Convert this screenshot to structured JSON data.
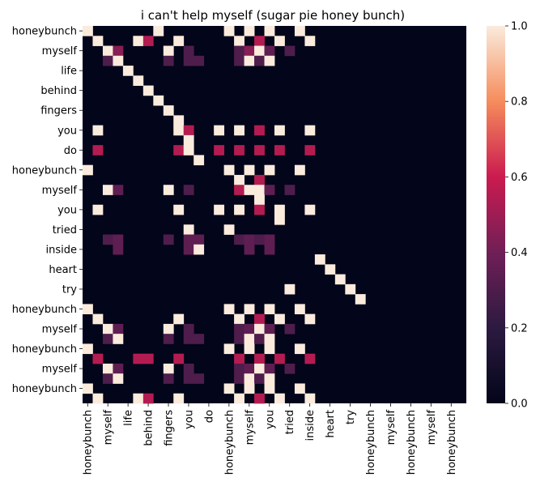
{
  "chart_data": {
    "type": "heatmap",
    "title": "i can't help myself (sugar pie honey bunch)",
    "tick_labels": [
      "honeybunch",
      "myself",
      "life",
      "behind",
      "fingers",
      "you",
      "do",
      "honeybunch",
      "myself",
      "you",
      "tried",
      "inside",
      "heart",
      "try",
      "honeybunch",
      "myself",
      "honeybunch",
      "myself",
      "honeybunch"
    ],
    "n": 38,
    "colorbar": {
      "min": 0.0,
      "max": 1.0,
      "ticks": [
        "0.0",
        "0.2",
        "0.4",
        "0.6",
        "0.8",
        "1.0"
      ]
    },
    "colormap": "rocket",
    "cells": [
      [
        0,
        0,
        1.0
      ],
      [
        0,
        7,
        1.0
      ],
      [
        0,
        14,
        1.0
      ],
      [
        0,
        16,
        1.0
      ],
      [
        0,
        18,
        1.0
      ],
      [
        0,
        21,
        1.0
      ],
      [
        1,
        1,
        1.0
      ],
      [
        1,
        5,
        1.0
      ],
      [
        1,
        6,
        0.55
      ],
      [
        1,
        9,
        1.0
      ],
      [
        1,
        15,
        1.0
      ],
      [
        1,
        17,
        0.55
      ],
      [
        1,
        19,
        1.0
      ],
      [
        1,
        22,
        1.0
      ],
      [
        2,
        2,
        1.0
      ],
      [
        2,
        3,
        0.45
      ],
      [
        2,
        8,
        1.0
      ],
      [
        2,
        10,
        0.3
      ],
      [
        2,
        15,
        0.3
      ],
      [
        2,
        16,
        0.45
      ],
      [
        2,
        17,
        1.0
      ],
      [
        2,
        18,
        0.35
      ],
      [
        2,
        20,
        0.3
      ],
      [
        3,
        2,
        0.3
      ],
      [
        3,
        3,
        1.0
      ],
      [
        3,
        8,
        0.3
      ],
      [
        3,
        10,
        0.3
      ],
      [
        3,
        11,
        0.3
      ],
      [
        3,
        15,
        0.3
      ],
      [
        3,
        16,
        1.0
      ],
      [
        3,
        17,
        0.3
      ],
      [
        3,
        18,
        1.0
      ],
      [
        4,
        4,
        1.0
      ],
      [
        5,
        5,
        1.0
      ],
      [
        6,
        6,
        1.0
      ],
      [
        7,
        7,
        1.0
      ],
      [
        8,
        8,
        1.0
      ],
      [
        9,
        9,
        1.0
      ],
      [
        10,
        1,
        1.0
      ],
      [
        10,
        9,
        1.0
      ],
      [
        10,
        10,
        0.55
      ],
      [
        10,
        13,
        1.0
      ],
      [
        10,
        15,
        1.0
      ],
      [
        10,
        17,
        0.55
      ],
      [
        10,
        19,
        1.0
      ],
      [
        10,
        22,
        1.0
      ],
      [
        11,
        10,
        1.0
      ],
      [
        12,
        1,
        0.55
      ],
      [
        12,
        9,
        0.55
      ],
      [
        12,
        10,
        1.0
      ],
      [
        12,
        13,
        0.55
      ],
      [
        12,
        15,
        0.55
      ],
      [
        12,
        17,
        0.55
      ],
      [
        12,
        19,
        0.55
      ],
      [
        12,
        22,
        0.55
      ],
      [
        13,
        11,
        1.0
      ],
      [
        14,
        0,
        1.0
      ],
      [
        14,
        14,
        1.0
      ],
      [
        14,
        16,
        1.0
      ],
      [
        14,
        18,
        1.0
      ],
      [
        14,
        21,
        1.0
      ],
      [
        15,
        15,
        1.0
      ],
      [
        15,
        17,
        0.55
      ],
      [
        16,
        2,
        1.0
      ],
      [
        16,
        3,
        0.35
      ],
      [
        16,
        8,
        1.0
      ],
      [
        16,
        10,
        0.3
      ],
      [
        16,
        15,
        0.55
      ],
      [
        16,
        16,
        1.0
      ],
      [
        16,
        17,
        1.0
      ],
      [
        16,
        18,
        0.35
      ],
      [
        16,
        20,
        0.3
      ],
      [
        17,
        17,
        1.0
      ],
      [
        18,
        1,
        1.0
      ],
      [
        18,
        9,
        1.0
      ],
      [
        18,
        13,
        1.0
      ],
      [
        18,
        15,
        1.0
      ],
      [
        18,
        17,
        0.55
      ],
      [
        18,
        19,
        1.0
      ],
      [
        18,
        22,
        1.0
      ],
      [
        19,
        19,
        1.0
      ],
      [
        20,
        10,
        1.0
      ],
      [
        20,
        14,
        1.0
      ],
      [
        21,
        2,
        0.3
      ],
      [
        21,
        3,
        0.35
      ],
      [
        21,
        8,
        0.3
      ],
      [
        21,
        10,
        0.35
      ],
      [
        21,
        11,
        0.35
      ],
      [
        21,
        15,
        0.3
      ],
      [
        21,
        16,
        0.35
      ],
      [
        21,
        17,
        0.3
      ],
      [
        21,
        18,
        0.35
      ],
      [
        22,
        3,
        0.35
      ],
      [
        22,
        10,
        0.35
      ],
      [
        22,
        11,
        1.0
      ],
      [
        22,
        16,
        0.35
      ],
      [
        22,
        18,
        0.35
      ],
      [
        23,
        23,
        1.0
      ],
      [
        24,
        24,
        1.0
      ],
      [
        25,
        25,
        1.0
      ],
      [
        26,
        20,
        1.0
      ],
      [
        26,
        26,
        1.0
      ],
      [
        27,
        27,
        1.0
      ],
      [
        28,
        0,
        1.0
      ],
      [
        28,
        14,
        1.0
      ],
      [
        28,
        16,
        1.0
      ],
      [
        28,
        18,
        1.0
      ],
      [
        28,
        21,
        1.0
      ],
      [
        29,
        1,
        1.0
      ],
      [
        29,
        9,
        1.0
      ],
      [
        29,
        15,
        1.0
      ],
      [
        29,
        17,
        0.55
      ],
      [
        29,
        19,
        1.0
      ],
      [
        29,
        22,
        1.0
      ],
      [
        30,
        2,
        1.0
      ],
      [
        30,
        3,
        0.35
      ],
      [
        30,
        8,
        1.0
      ],
      [
        30,
        10,
        0.3
      ],
      [
        30,
        15,
        0.3
      ],
      [
        30,
        16,
        0.35
      ],
      [
        30,
        17,
        1.0
      ],
      [
        30,
        18,
        0.35
      ],
      [
        30,
        20,
        0.3
      ],
      [
        31,
        2,
        0.3
      ],
      [
        31,
        3,
        1.0
      ],
      [
        31,
        8,
        0.3
      ],
      [
        31,
        10,
        0.3
      ],
      [
        31,
        11,
        0.3
      ],
      [
        31,
        15,
        0.3
      ],
      [
        31,
        16,
        1.0
      ],
      [
        31,
        17,
        0.3
      ],
      [
        31,
        18,
        1.0
      ],
      [
        32,
        0,
        1.0
      ],
      [
        32,
        14,
        1.0
      ],
      [
        32,
        16,
        1.0
      ],
      [
        32,
        18,
        1.0
      ],
      [
        32,
        21,
        1.0
      ],
      [
        33,
        1,
        0.55
      ],
      [
        33,
        5,
        0.55
      ],
      [
        33,
        6,
        0.55
      ],
      [
        33,
        9,
        0.55
      ],
      [
        33,
        15,
        0.55
      ],
      [
        33,
        17,
        0.55
      ],
      [
        33,
        19,
        0.55
      ],
      [
        33,
        22,
        0.55
      ],
      [
        34,
        2,
        1.0
      ],
      [
        34,
        3,
        0.35
      ],
      [
        34,
        8,
        1.0
      ],
      [
        34,
        10,
        0.3
      ],
      [
        34,
        15,
        0.3
      ],
      [
        34,
        16,
        0.35
      ],
      [
        34,
        17,
        1.0
      ],
      [
        34,
        18,
        0.35
      ],
      [
        34,
        20,
        0.3
      ],
      [
        35,
        2,
        0.3
      ],
      [
        35,
        3,
        1.0
      ],
      [
        35,
        8,
        0.3
      ],
      [
        35,
        10,
        0.3
      ],
      [
        35,
        11,
        0.3
      ],
      [
        35,
        15,
        0.3
      ],
      [
        35,
        16,
        1.0
      ],
      [
        35,
        17,
        0.3
      ],
      [
        35,
        18,
        1.0
      ],
      [
        36,
        0,
        1.0
      ],
      [
        36,
        14,
        1.0
      ],
      [
        36,
        16,
        1.0
      ],
      [
        36,
        18,
        1.0
      ],
      [
        36,
        21,
        1.0
      ],
      [
        37,
        1,
        1.0
      ],
      [
        37,
        5,
        1.0
      ],
      [
        37,
        6,
        0.55
      ],
      [
        37,
        9,
        1.0
      ],
      [
        37,
        15,
        1.0
      ],
      [
        37,
        17,
        0.55
      ],
      [
        37,
        19,
        1.0
      ],
      [
        37,
        22,
        1.0
      ]
    ]
  }
}
